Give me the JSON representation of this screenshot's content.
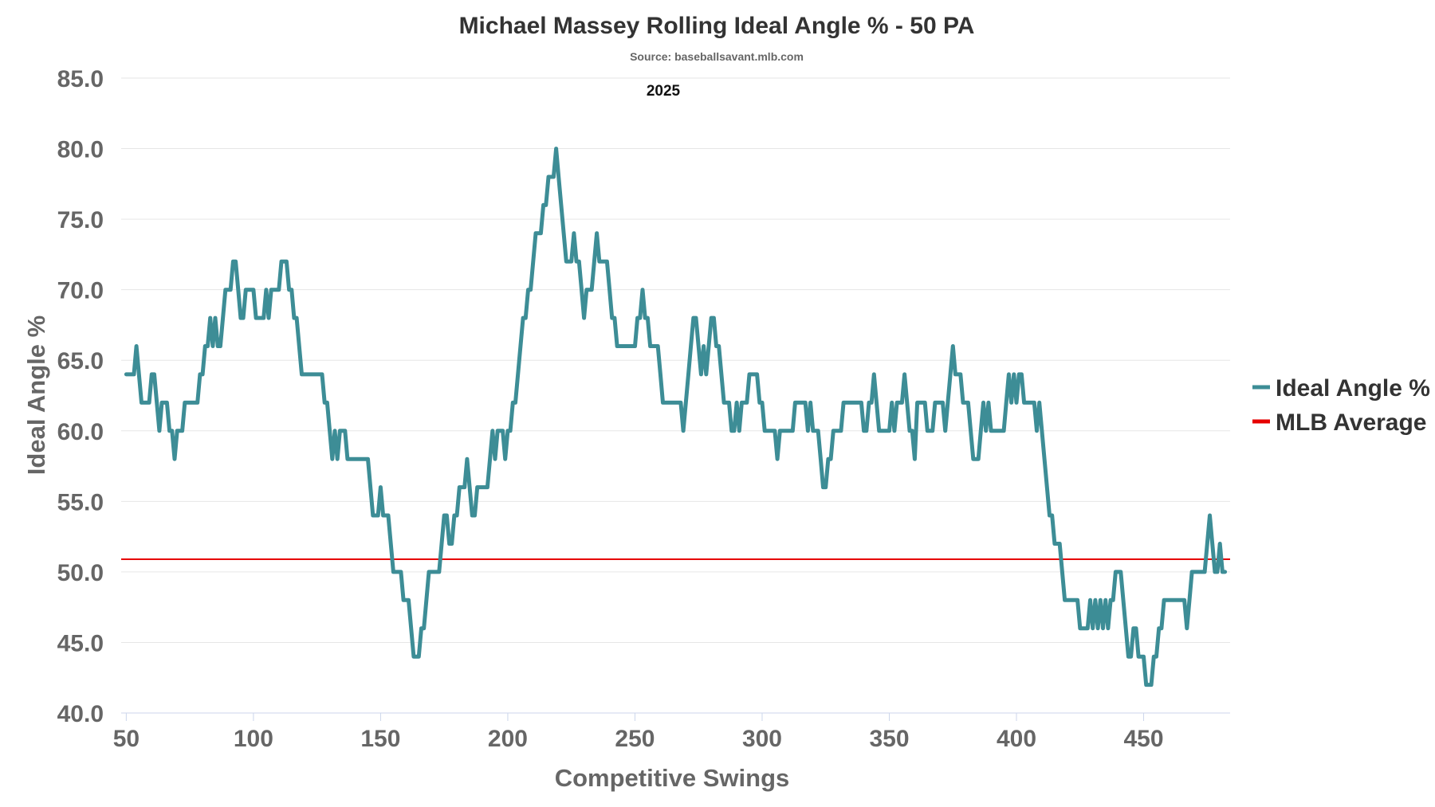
{
  "chart_data": {
    "type": "line",
    "title": "Michael Massey Rolling Ideal Angle % - 50 PA",
    "subtitle": "Source: baseballsavant.mlb.com",
    "annotation": "2025",
    "xlabel": "Competitive Swings",
    "ylabel": "Ideal Angle %",
    "xlim": [
      48,
      484
    ],
    "ylim": [
      40,
      85
    ],
    "x_ticks": [
      "50",
      "100",
      "150",
      "200",
      "250",
      "300",
      "350",
      "400",
      "450"
    ],
    "y_ticks": [
      "40.0",
      "45.0",
      "50.0",
      "55.0",
      "60.0",
      "65.0",
      "70.0",
      "75.0",
      "80.0",
      "85.0"
    ],
    "grid": true,
    "legend_position": "right",
    "series": [
      {
        "name": "Ideal Angle %",
        "color": "#3d8d96",
        "points": [
          [
            50,
            64
          ],
          [
            53,
            64
          ],
          [
            54,
            66
          ],
          [
            55,
            64
          ],
          [
            56,
            62
          ],
          [
            59,
            62
          ],
          [
            60,
            64
          ],
          [
            61,
            64
          ],
          [
            63,
            60
          ],
          [
            64,
            62
          ],
          [
            66,
            62
          ],
          [
            67,
            60
          ],
          [
            68,
            60
          ],
          [
            69,
            58
          ],
          [
            70,
            60
          ],
          [
            72,
            60
          ],
          [
            73,
            62
          ],
          [
            78,
            62
          ],
          [
            79,
            64
          ],
          [
            80,
            64
          ],
          [
            81,
            66
          ],
          [
            82,
            66
          ],
          [
            83,
            68
          ],
          [
            84,
            66
          ],
          [
            85,
            68
          ],
          [
            86,
            66
          ],
          [
            87,
            66
          ],
          [
            88,
            68
          ],
          [
            89,
            70
          ],
          [
            91,
            70
          ],
          [
            92,
            72
          ],
          [
            93,
            72
          ],
          [
            94,
            70
          ],
          [
            95,
            68
          ],
          [
            96,
            68
          ],
          [
            97,
            70
          ],
          [
            100,
            70
          ],
          [
            101,
            68
          ],
          [
            104,
            68
          ],
          [
            105,
            70
          ],
          [
            106,
            68
          ],
          [
            107,
            70
          ],
          [
            110,
            70
          ],
          [
            111,
            72
          ],
          [
            113,
            72
          ],
          [
            114,
            70
          ],
          [
            115,
            70
          ],
          [
            116,
            68
          ],
          [
            117,
            68
          ],
          [
            119,
            64
          ],
          [
            127,
            64
          ],
          [
            128,
            62
          ],
          [
            129,
            62
          ],
          [
            130,
            60
          ],
          [
            131,
            58
          ],
          [
            132,
            60
          ],
          [
            133,
            58
          ],
          [
            134,
            60
          ],
          [
            136,
            60
          ],
          [
            137,
            58
          ],
          [
            145,
            58
          ],
          [
            147,
            54
          ],
          [
            149,
            54
          ],
          [
            150,
            56
          ],
          [
            151,
            54
          ],
          [
            153,
            54
          ],
          [
            155,
            50
          ],
          [
            158,
            50
          ],
          [
            159,
            48
          ],
          [
            161,
            48
          ],
          [
            163,
            44
          ],
          [
            165,
            44
          ],
          [
            166,
            46
          ],
          [
            167,
            46
          ],
          [
            169,
            50
          ],
          [
            173,
            50
          ],
          [
            174,
            52
          ],
          [
            175,
            54
          ],
          [
            176,
            54
          ],
          [
            177,
            52
          ],
          [
            178,
            52
          ],
          [
            179,
            54
          ],
          [
            180,
            54
          ],
          [
            181,
            56
          ],
          [
            183,
            56
          ],
          [
            184,
            58
          ],
          [
            185,
            56
          ],
          [
            186,
            54
          ],
          [
            187,
            54
          ],
          [
            188,
            56
          ],
          [
            192,
            56
          ],
          [
            193,
            58
          ],
          [
            194,
            60
          ],
          [
            195,
            58
          ],
          [
            196,
            60
          ],
          [
            198,
            60
          ],
          [
            199,
            58
          ],
          [
            200,
            60
          ],
          [
            201,
            60
          ],
          [
            202,
            62
          ],
          [
            203,
            62
          ],
          [
            204,
            64
          ],
          [
            205,
            66
          ],
          [
            206,
            68
          ],
          [
            207,
            68
          ],
          [
            208,
            70
          ],
          [
            209,
            70
          ],
          [
            210,
            72
          ],
          [
            211,
            74
          ],
          [
            213,
            74
          ],
          [
            214,
            76
          ],
          [
            215,
            76
          ],
          [
            216,
            78
          ],
          [
            218,
            78
          ],
          [
            219,
            80
          ],
          [
            220,
            78
          ],
          [
            221,
            76
          ],
          [
            222,
            74
          ],
          [
            223,
            72
          ],
          [
            225,
            72
          ],
          [
            226,
            74
          ],
          [
            227,
            72
          ],
          [
            228,
            72
          ],
          [
            229,
            70
          ],
          [
            230,
            68
          ],
          [
            231,
            70
          ],
          [
            233,
            70
          ],
          [
            234,
            72
          ],
          [
            235,
            74
          ],
          [
            236,
            72
          ],
          [
            239,
            72
          ],
          [
            240,
            70
          ],
          [
            241,
            68
          ],
          [
            242,
            68
          ],
          [
            243,
            66
          ],
          [
            250,
            66
          ],
          [
            251,
            68
          ],
          [
            252,
            68
          ],
          [
            253,
            70
          ],
          [
            254,
            68
          ],
          [
            255,
            68
          ],
          [
            256,
            66
          ],
          [
            259,
            66
          ],
          [
            260,
            64
          ],
          [
            261,
            62
          ],
          [
            268,
            62
          ],
          [
            269,
            60
          ],
          [
            270,
            62
          ],
          [
            271,
            64
          ],
          [
            272,
            66
          ],
          [
            273,
            68
          ],
          [
            274,
            68
          ],
          [
            275,
            66
          ],
          [
            276,
            64
          ],
          [
            277,
            66
          ],
          [
            278,
            64
          ],
          [
            279,
            66
          ],
          [
            280,
            68
          ],
          [
            281,
            68
          ],
          [
            282,
            66
          ],
          [
            283,
            66
          ],
          [
            284,
            64
          ],
          [
            285,
            62
          ],
          [
            287,
            62
          ],
          [
            288,
            60
          ],
          [
            289,
            60
          ],
          [
            290,
            62
          ],
          [
            291,
            60
          ],
          [
            292,
            62
          ],
          [
            294,
            62
          ],
          [
            295,
            64
          ],
          [
            298,
            64
          ],
          [
            299,
            62
          ],
          [
            300,
            62
          ],
          [
            301,
            60
          ],
          [
            305,
            60
          ],
          [
            306,
            58
          ],
          [
            307,
            60
          ],
          [
            312,
            60
          ],
          [
            313,
            62
          ],
          [
            317,
            62
          ],
          [
            318,
            60
          ],
          [
            319,
            62
          ],
          [
            320,
            60
          ],
          [
            322,
            60
          ],
          [
            323,
            58
          ],
          [
            324,
            56
          ],
          [
            325,
            56
          ],
          [
            326,
            58
          ],
          [
            327,
            58
          ],
          [
            328,
            60
          ],
          [
            331,
            60
          ],
          [
            332,
            62
          ],
          [
            339,
            62
          ],
          [
            340,
            60
          ],
          [
            341,
            60
          ],
          [
            342,
            62
          ],
          [
            343,
            62
          ],
          [
            344,
            64
          ],
          [
            345,
            62
          ],
          [
            346,
            60
          ],
          [
            350,
            60
          ],
          [
            351,
            62
          ],
          [
            352,
            60
          ],
          [
            353,
            62
          ],
          [
            355,
            62
          ],
          [
            356,
            64
          ],
          [
            357,
            62
          ],
          [
            358,
            60
          ],
          [
            359,
            60
          ],
          [
            360,
            58
          ],
          [
            361,
            62
          ],
          [
            364,
            62
          ],
          [
            365,
            60
          ],
          [
            367,
            60
          ],
          [
            368,
            62
          ],
          [
            371,
            62
          ],
          [
            372,
            60
          ],
          [
            373,
            62
          ],
          [
            374,
            64
          ],
          [
            375,
            66
          ],
          [
            376,
            64
          ],
          [
            378,
            64
          ],
          [
            379,
            62
          ],
          [
            381,
            62
          ],
          [
            382,
            60
          ],
          [
            383,
            58
          ],
          [
            385,
            58
          ],
          [
            386,
            60
          ],
          [
            387,
            62
          ],
          [
            388,
            60
          ],
          [
            389,
            62
          ],
          [
            390,
            60
          ],
          [
            395,
            60
          ],
          [
            396,
            62
          ],
          [
            397,
            64
          ],
          [
            398,
            62
          ],
          [
            399,
            64
          ],
          [
            400,
            62
          ],
          [
            401,
            64
          ],
          [
            402,
            64
          ],
          [
            403,
            62
          ],
          [
            407,
            62
          ],
          [
            408,
            60
          ],
          [
            409,
            62
          ],
          [
            410,
            60
          ],
          [
            411,
            58
          ],
          [
            412,
            56
          ],
          [
            413,
            54
          ],
          [
            414,
            54
          ],
          [
            415,
            52
          ],
          [
            417,
            52
          ],
          [
            418,
            50
          ],
          [
            419,
            48
          ],
          [
            424,
            48
          ],
          [
            425,
            46
          ],
          [
            428,
            46
          ],
          [
            429,
            48
          ],
          [
            430,
            46
          ],
          [
            431,
            48
          ],
          [
            432,
            46
          ],
          [
            433,
            48
          ],
          [
            434,
            46
          ],
          [
            435,
            48
          ],
          [
            436,
            46
          ],
          [
            437,
            48
          ],
          [
            438,
            48
          ],
          [
            439,
            50
          ],
          [
            441,
            50
          ],
          [
            442,
            48
          ],
          [
            443,
            46
          ],
          [
            444,
            44
          ],
          [
            445,
            44
          ],
          [
            446,
            46
          ],
          [
            447,
            46
          ],
          [
            448,
            44
          ],
          [
            450,
            44
          ],
          [
            451,
            42
          ],
          [
            453,
            42
          ],
          [
            454,
            44
          ],
          [
            455,
            44
          ],
          [
            456,
            46
          ],
          [
            457,
            46
          ],
          [
            458,
            48
          ],
          [
            466,
            48
          ],
          [
            467,
            46
          ],
          [
            468,
            48
          ],
          [
            469,
            50
          ],
          [
            474,
            50
          ],
          [
            475,
            52
          ],
          [
            476,
            54
          ],
          [
            477,
            52
          ],
          [
            478,
            50
          ],
          [
            479,
            50
          ],
          [
            480,
            52
          ],
          [
            481,
            50
          ],
          [
            482,
            50
          ]
        ]
      },
      {
        "name": "MLB Average",
        "color": "#e60000",
        "value": 50.9
      }
    ]
  }
}
